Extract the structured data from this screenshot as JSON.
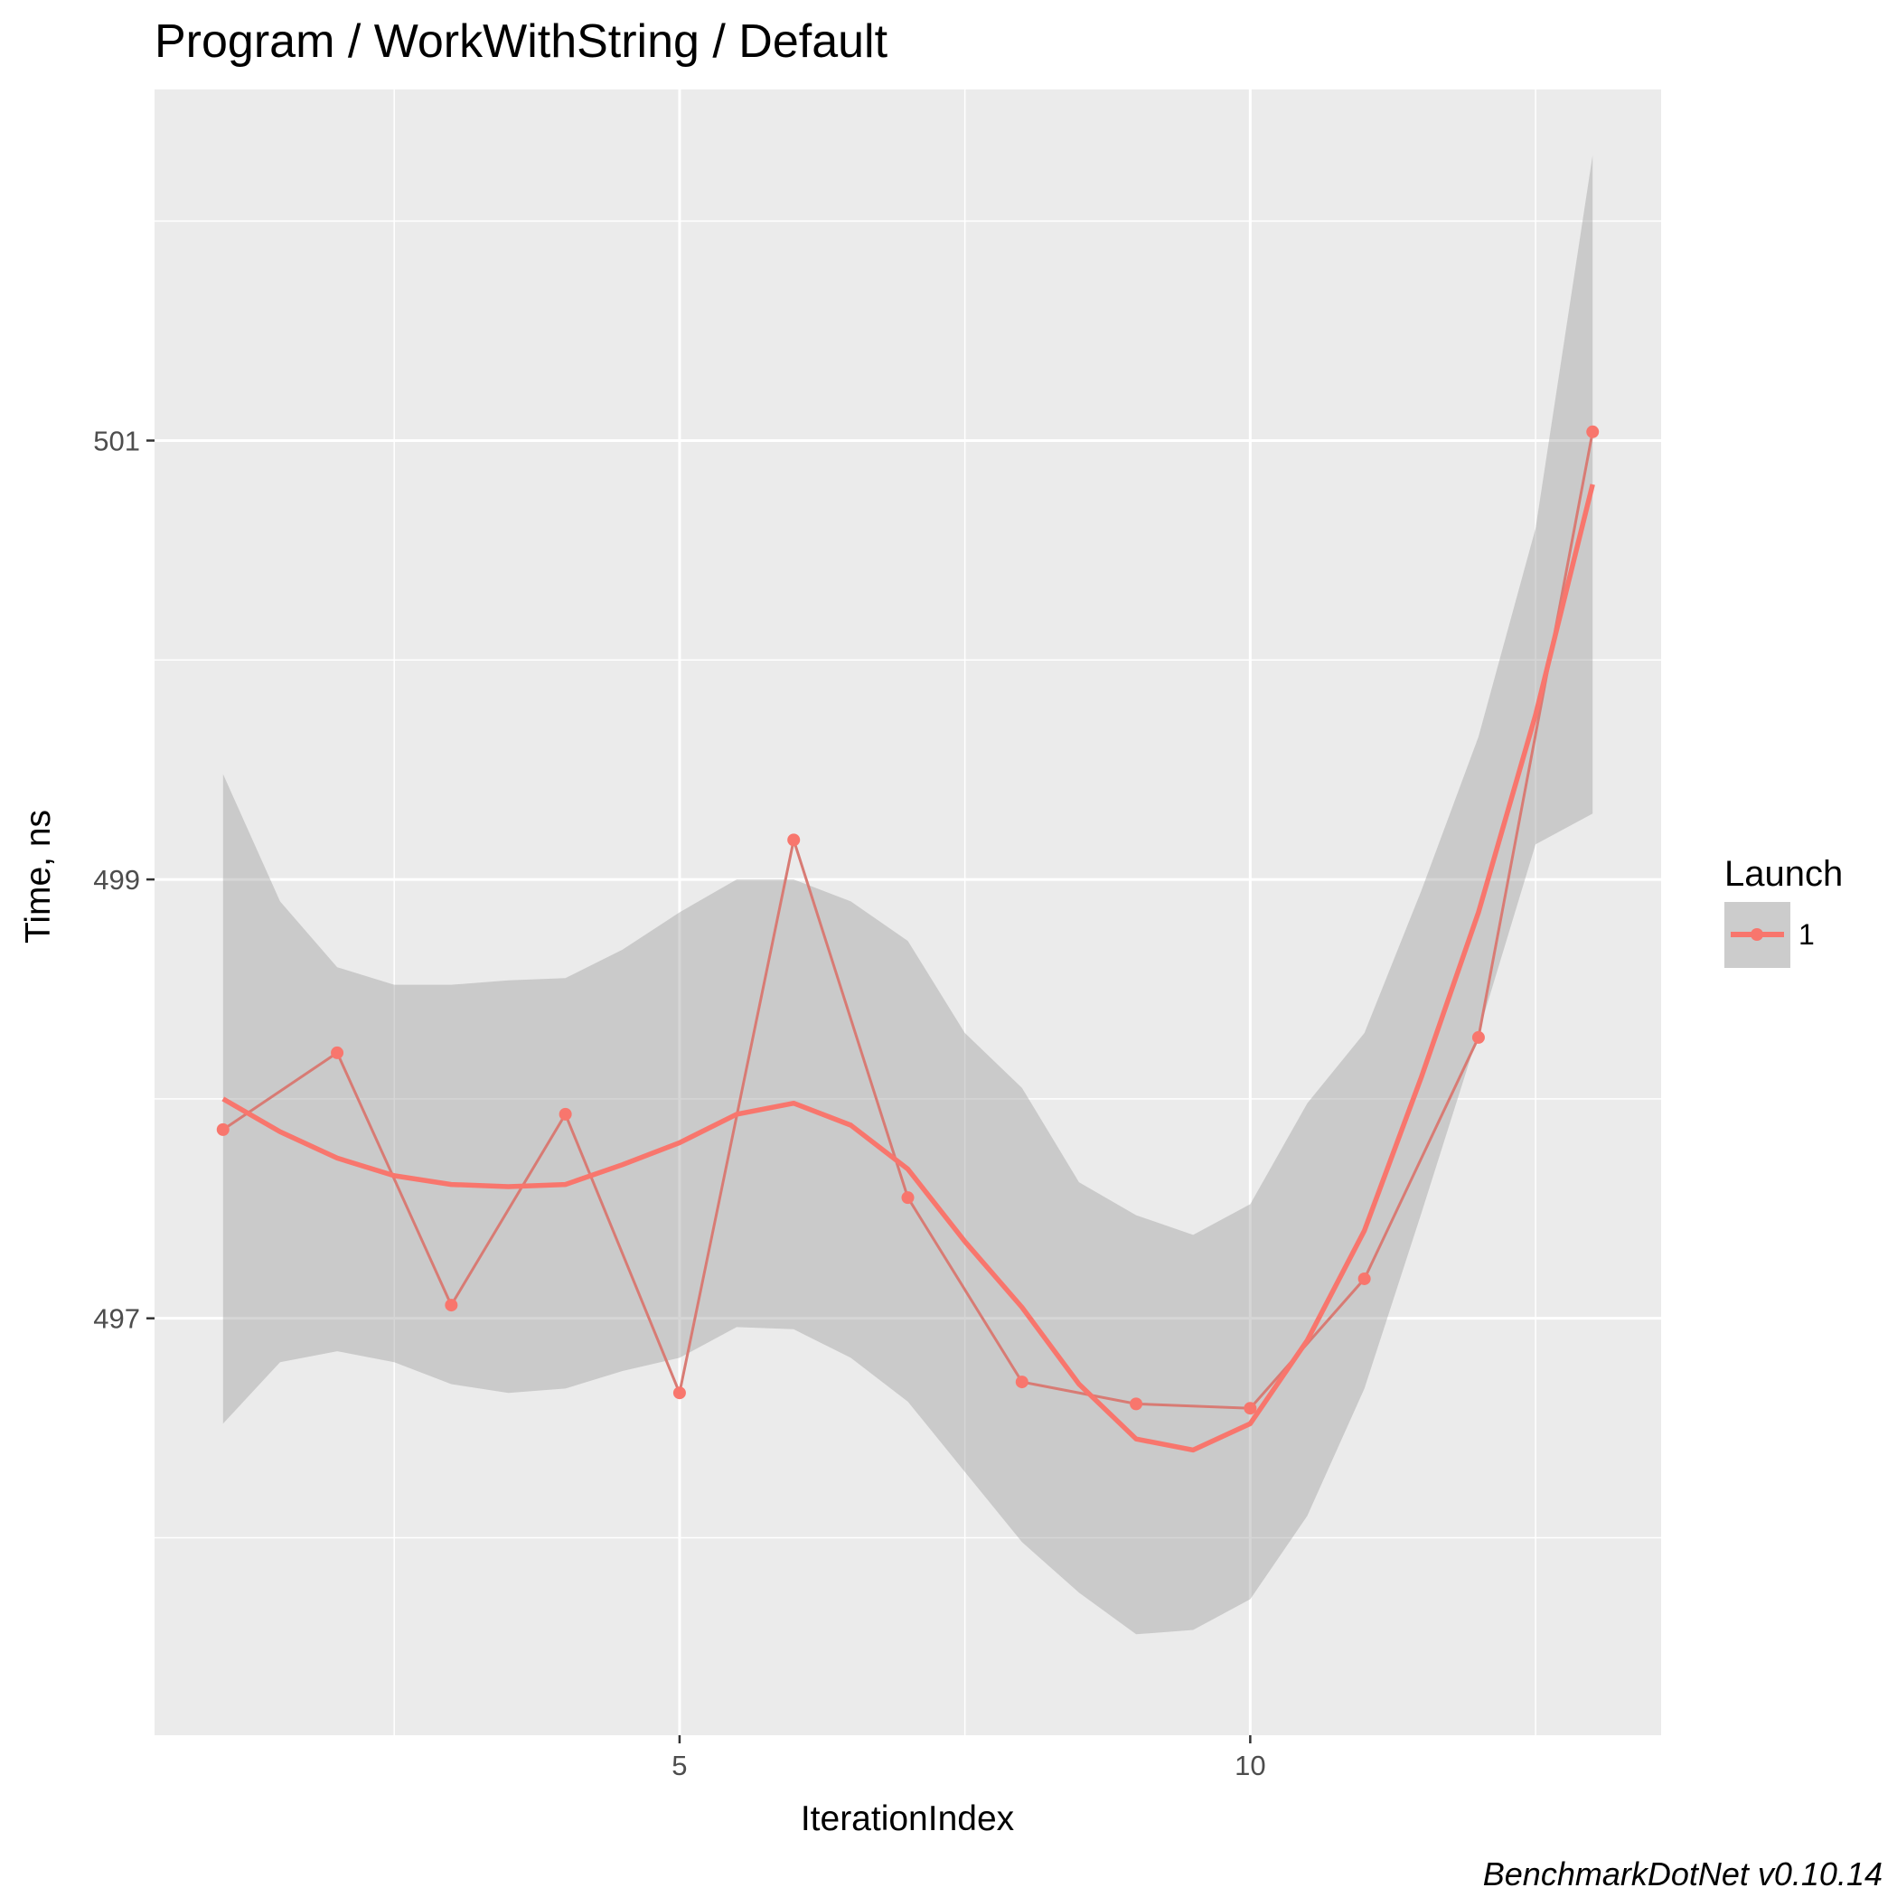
{
  "chart_data": {
    "type": "line",
    "title": "Program / WorkWithString / Default",
    "xlabel": "IterationIndex",
    "ylabel": "Time, ns",
    "caption": "BenchmarkDotNet v0.10.14",
    "xlim": [
      0.4,
      13.6
    ],
    "ylim": [
      495.1,
      502.6
    ],
    "x_ticks": [
      5,
      10
    ],
    "x_tick_labels": [
      "5",
      "10"
    ],
    "y_ticks": [
      497,
      499,
      501
    ],
    "y_tick_labels": [
      "497",
      "499",
      "501"
    ],
    "grid": true,
    "legend": {
      "title": "Launch",
      "position": "right",
      "entries": [
        "1"
      ]
    },
    "colors": {
      "series": "#f8766d",
      "raw_line": "#d87b74",
      "band": "#999999",
      "panel": "#ebebeb",
      "grid": "#ffffff"
    },
    "series": [
      {
        "name": "1",
        "x": [
          1,
          2,
          3,
          4,
          5,
          6,
          7,
          8,
          9,
          10,
          11,
          12,
          13
        ],
        "values": [
          497.86,
          498.21,
          497.06,
          497.93,
          496.66,
          499.18,
          497.55,
          496.71,
          496.61,
          496.59,
          497.18,
          498.28,
          501.04
        ]
      }
    ],
    "smooth": {
      "x": [
        1,
        1.5,
        2,
        2.5,
        3,
        3.5,
        4,
        4.5,
        5,
        5.5,
        6,
        6.5,
        7,
        7.5,
        8,
        8.5,
        9,
        9.5,
        10,
        10.5,
        11,
        11.5,
        12,
        12.5,
        13
      ],
      "fit": [
        498.0,
        497.85,
        497.73,
        497.65,
        497.61,
        497.6,
        497.61,
        497.7,
        497.8,
        497.93,
        497.98,
        497.88,
        497.68,
        497.35,
        497.05,
        496.7,
        496.45,
        496.4,
        496.52,
        496.9,
        497.4,
        498.1,
        498.85,
        499.75,
        500.8
      ],
      "lower": [
        496.52,
        496.8,
        496.85,
        496.8,
        496.7,
        496.66,
        496.68,
        496.76,
        496.82,
        496.96,
        496.95,
        496.82,
        496.62,
        496.3,
        495.98,
        495.75,
        495.56,
        495.58,
        495.72,
        496.1,
        496.68,
        497.48,
        498.3,
        499.16,
        499.3
      ],
      "upper": [
        499.48,
        498.9,
        498.6,
        498.52,
        498.52,
        498.54,
        498.55,
        498.68,
        498.85,
        499.0,
        499.0,
        498.9,
        498.72,
        498.3,
        498.05,
        497.62,
        497.47,
        497.38,
        497.52,
        497.98,
        498.3,
        498.95,
        499.65,
        500.6,
        502.3
      ]
    }
  }
}
